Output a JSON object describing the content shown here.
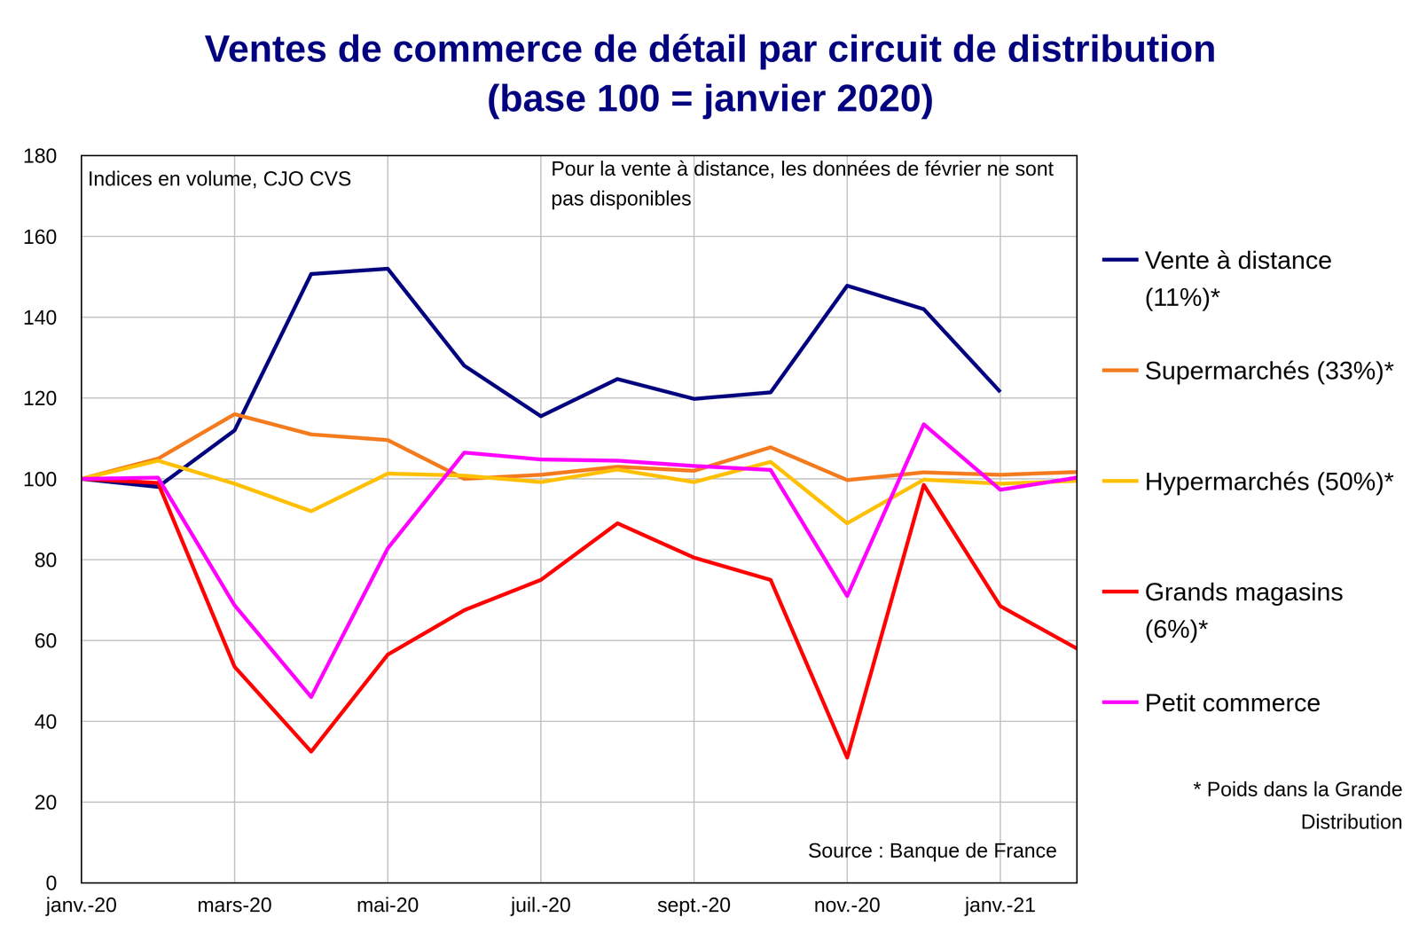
{
  "chart_data": {
    "type": "line",
    "title": "Ventes de commerce de détail par circuit de distribution (base 100 = janvier 2020)",
    "categories": [
      "janv.-20",
      null,
      "mars-20",
      null,
      "mai-20",
      null,
      "juil.-20",
      null,
      "sept.-20",
      null,
      "nov.-20",
      null,
      "janv.-21",
      null
    ],
    "ylim": [
      0,
      180
    ],
    "yticks": [
      0,
      20,
      40,
      60,
      80,
      100,
      120,
      140,
      160,
      180
    ],
    "grid": true,
    "legend": "right",
    "annotations": [
      {
        "text": "Indices en volume, CJO CVS"
      },
      {
        "text": "Pour la vente à distance, les données de février ne sont pas disponibles"
      },
      {
        "text": "Source : Banque de France"
      },
      {
        "text": "* Poids dans la Grande Distribution"
      }
    ],
    "series": [
      {
        "name": "Vente à distance (11%)*",
        "color": "#000080",
        "values": [
          100,
          98,
          112,
          150.7,
          152,
          128,
          115.5,
          124.7,
          119.8,
          121.4,
          147.8,
          142,
          121.5,
          null
        ]
      },
      {
        "name": "Supermarchés (33%)*",
        "color": "#F47C20",
        "values": [
          100,
          105,
          116,
          111,
          109.6,
          100,
          101,
          103,
          102,
          107.8,
          99.7,
          101.6,
          101,
          101.7
        ]
      },
      {
        "name": "Hypermarchés (50%)*",
        "color": "#FFC000",
        "values": [
          100,
          104.5,
          98.8,
          92,
          101.3,
          100.8,
          99.2,
          102.3,
          99.2,
          104.2,
          89,
          99.8,
          98.8,
          99.5
        ]
      },
      {
        "name": "Grands magasins (6%)*",
        "color": "#FF0000",
        "values": [
          100,
          99,
          53.5,
          32.5,
          56.5,
          67.5,
          75,
          89,
          80.5,
          75,
          31,
          98.5,
          68.5,
          58
        ]
      },
      {
        "name": "Petit commerce",
        "color": "#FF00FF",
        "values": [
          100,
          100.3,
          68.7,
          46,
          82.8,
          106.5,
          104.8,
          104.5,
          103.2,
          102.2,
          71,
          113.5,
          97.3,
          100.3
        ]
      }
    ]
  }
}
